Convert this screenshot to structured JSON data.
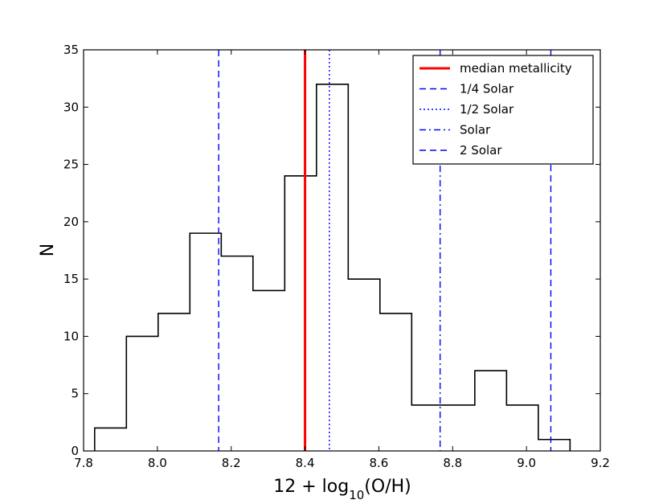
{
  "chart_data": {
    "type": "histogram",
    "xlabel": "12 + log10(O/H)",
    "xlabel_parts": {
      "prefix": "12 + log",
      "subscript": "10",
      "suffix": "(O/H)"
    },
    "ylabel": "N",
    "xlim": [
      7.8,
      9.2
    ],
    "ylim": [
      0,
      35
    ],
    "xticks": [
      "7.8",
      "8.0",
      "8.2",
      "8.4",
      "8.6",
      "8.8",
      "9.0",
      "9.2"
    ],
    "xtick_values": [
      7.8,
      8.0,
      8.2,
      8.4,
      8.6,
      8.8,
      9.0,
      9.2
    ],
    "yticks": [
      "0",
      "5",
      "10",
      "15",
      "20",
      "25",
      "30",
      "35"
    ],
    "ytick_values": [
      0,
      5,
      10,
      15,
      20,
      25,
      30,
      35
    ],
    "bin_edges": [
      7.83,
      7.916,
      8.002,
      8.088,
      8.173,
      8.259,
      8.345,
      8.431,
      8.517,
      8.603,
      8.689,
      8.775,
      8.86,
      8.946,
      9.032,
      9.118
    ],
    "counts": [
      2,
      10,
      12,
      19,
      17,
      14,
      24,
      32,
      15,
      12,
      4,
      4,
      7,
      4,
      1
    ],
    "vertical_lines": [
      {
        "label": "median metallicity",
        "x": 8.4,
        "color": "#ff0000",
        "style": "solid"
      },
      {
        "label": "1/4 Solar",
        "x": 8.166,
        "color": "#0000ff",
        "style": "dashed"
      },
      {
        "label": "1/2 Solar",
        "x": 8.466,
        "color": "#0000ff",
        "style": "dotted"
      },
      {
        "label": "Solar",
        "x": 8.766,
        "color": "#0000ff",
        "style": "dashdot"
      },
      {
        "label": "2 Solar",
        "x": 9.066,
        "color": "#0000ff",
        "style": "dashed"
      }
    ],
    "legend": [
      "median metallicity",
      "1/4 Solar",
      "1/2 Solar",
      "Solar",
      "2 Solar"
    ],
    "legend_position": "top-right"
  }
}
